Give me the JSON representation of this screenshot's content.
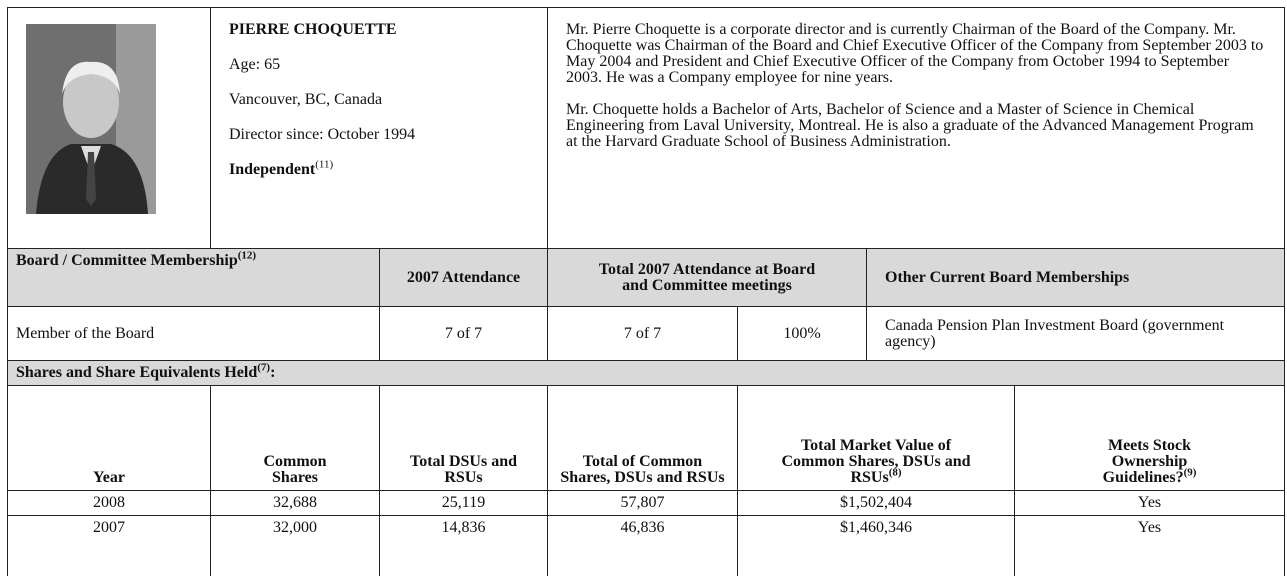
{
  "profile": {
    "name": "PIERRE CHOQUETTE",
    "age": "Age: 65",
    "location": "Vancouver, BC, Canada",
    "director_since": "Director since: October 1994",
    "independent": "Independent",
    "independent_note": "(11)"
  },
  "bio": [
    "Mr. Pierre Choquette is a corporate director and is currently Chairman of the Board of the Company. Mr. Choquette was Chairman of the Board and Chief Executive Officer of the Company from September 2003 to May 2004 and President and Chief Executive Officer of the Company from October 1994 to September 2003. He was a Company employee for nine years.",
    "Mr. Choquette holds a Bachelor of Arts, Bachelor of Science and a Master of Science in Chemical Engineering from Laval University, Montreal. He is also a graduate of the Advanced Management Program at the Harvard Graduate School of Business Administration."
  ],
  "membership": {
    "headers": [
      "Board / Committee Membership",
      "2007 Attendance",
      "Total 2007 Attendance at Board and Committee meetings",
      "Other Current Board Memberships"
    ],
    "header_note": "(12)",
    "row": [
      "Member of the Board",
      "7 of 7",
      "7 of 7",
      "100%",
      "Canada Pension Plan Investment Board (government agency)"
    ]
  },
  "shares": {
    "title": "Shares and Share Equivalents Held",
    "title_note": "(7)",
    "title_end": ":",
    "headers": [
      "Year",
      "Common Shares",
      "Total DSUs and RSUs",
      "Total of Common Shares, DSUs and RSUs",
      "Total Market Value of Common Shares, DSUs and RSUs",
      "Meets Stock Ownership Guidelines?"
    ],
    "header_notes": {
      "market_value": "(8)",
      "guidelines": "(9)"
    },
    "rows": [
      [
        "2008",
        "32,688",
        "25,119",
        "57,807",
        "$1,502,404",
        "Yes"
      ],
      [
        "2007",
        "32,000",
        "14,836",
        "46,836",
        "$1,460,346",
        "Yes"
      ]
    ]
  }
}
